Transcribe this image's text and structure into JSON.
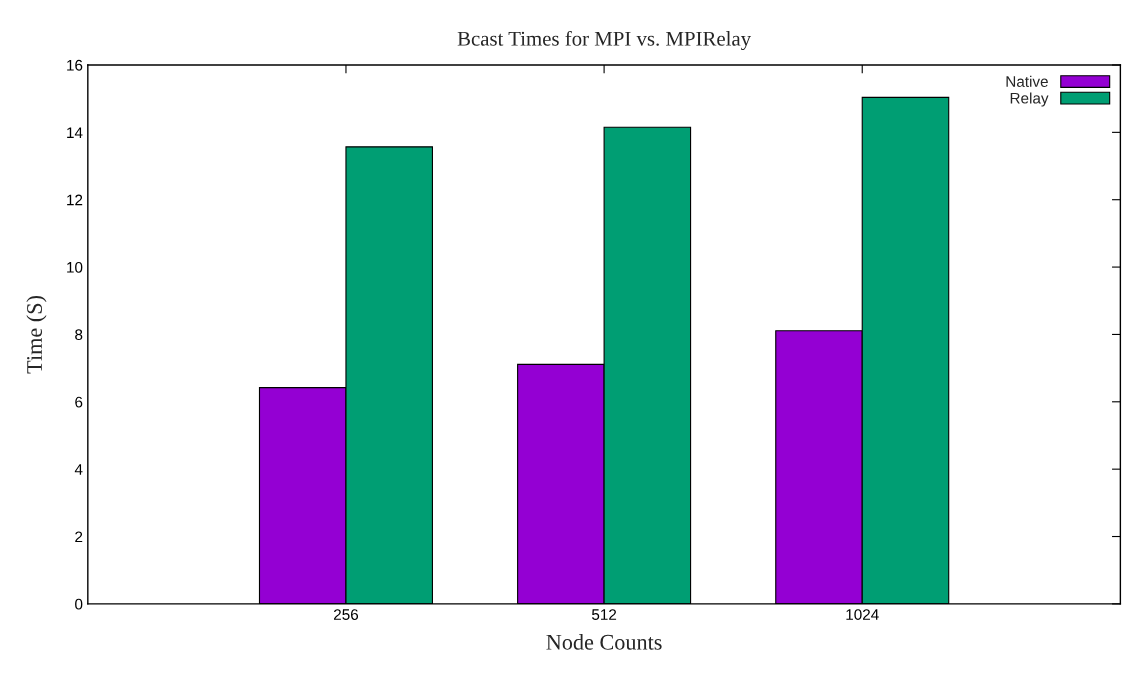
{
  "chart_data": {
    "type": "bar",
    "title": "Bcast Times for MPI vs. MPIRelay",
    "xlabel": "Node Counts",
    "ylabel": "Time (S)",
    "categories": [
      "256",
      "512",
      "1024"
    ],
    "series": [
      {
        "name": "Native",
        "color": "#9400d3",
        "values": [
          6.42,
          7.11,
          8.11
        ]
      },
      {
        "name": "Relay",
        "color": "#009e73",
        "values": [
          13.57,
          14.15,
          15.04
        ]
      }
    ],
    "ylim": [
      0,
      16
    ],
    "yticks": [
      0,
      2,
      4,
      6,
      8,
      10,
      12,
      14,
      16
    ],
    "grid": false,
    "legend": "top right"
  }
}
